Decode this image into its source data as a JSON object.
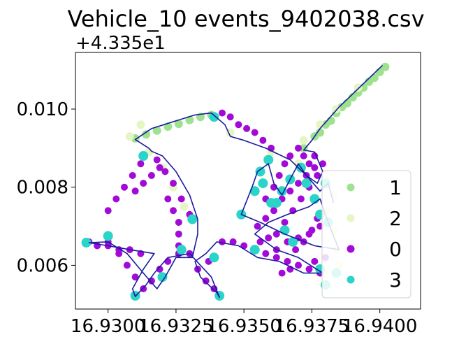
{
  "chart_data": {
    "type": "scatter",
    "title": "Vehicle_10 events_9402038.csv",
    "xlabel": "",
    "ylabel": "",
    "y_offset_text": "+4.335e1",
    "xlim": [
      16.9288,
      16.9415
    ],
    "ylim": [
      0.00488,
      0.01145
    ],
    "x_ticks": [
      16.93,
      16.9325,
      16.935,
      16.9375,
      16.94
    ],
    "x_tick_labels": [
      "16.9300",
      "16.9325",
      "16.9350",
      "16.9375",
      "16.9400"
    ],
    "y_ticks": [
      0.006,
      0.008,
      0.01
    ],
    "y_tick_labels": [
      "0.006",
      "0.008",
      "0.010"
    ],
    "grid": false,
    "legend_position": "lower-right",
    "colors": {
      "route_line": "#1a1aa0",
      "event_1": "#9de28e",
      "event_2": "#e6f5c4",
      "event_0": "#a20ad8",
      "event_3": "#2ad4c8"
    },
    "route": [
      [
        16.9401,
        0.01112
      ],
      [
        16.9385,
        0.01005
      ],
      [
        16.9378,
        0.0095
      ],
      [
        16.9375,
        0.0092
      ],
      [
        16.9372,
        0.00895
      ],
      [
        16.9376,
        0.0089
      ],
      [
        16.9379,
        0.0084
      ],
      [
        16.9377,
        0.0081
      ],
      [
        16.9373,
        0.0083
      ],
      [
        16.937,
        0.0086
      ],
      [
        16.9367,
        0.0082
      ],
      [
        16.9364,
        0.0078
      ],
      [
        16.9361,
        0.0081
      ],
      [
        16.9359,
        0.0086
      ],
      [
        16.9355,
        0.0084
      ],
      [
        16.9353,
        0.008
      ],
      [
        16.9349,
        0.0073
      ],
      [
        16.9356,
        0.0071
      ],
      [
        16.9365,
        0.0068
      ],
      [
        16.9376,
        0.0065
      ],
      [
        16.9385,
        0.0064
      ],
      [
        16.9381,
        0.0071
      ],
      [
        16.9378,
        0.0077
      ],
      [
        16.9374,
        0.0075
      ],
      [
        16.9366,
        0.0073
      ],
      [
        16.9359,
        0.0071
      ],
      [
        16.9354,
        0.0068
      ],
      [
        16.9362,
        0.0064
      ],
      [
        16.937,
        0.0062
      ],
      [
        16.9379,
        0.0058
      ],
      [
        16.9372,
        0.0058
      ],
      [
        16.9363,
        0.0061
      ],
      [
        16.9355,
        0.0062
      ],
      [
        16.9348,
        0.0065
      ],
      [
        16.934,
        0.0066
      ],
      [
        16.9336,
        0.0063
      ],
      [
        16.9332,
        0.0061
      ],
      [
        16.9334,
        0.0057
      ],
      [
        16.934,
        0.0053
      ],
      [
        16.9341,
        0.00518
      ],
      [
        16.9338,
        0.0057
      ],
      [
        16.933,
        0.0063
      ],
      [
        16.9322,
        0.0062
      ],
      [
        16.9317,
        0.0058
      ],
      [
        16.9314,
        0.0055
      ],
      [
        16.931,
        0.0052
      ],
      [
        16.9309,
        0.0054
      ],
      [
        16.9313,
        0.0059
      ],
      [
        16.9317,
        0.0063
      ],
      [
        16.9308,
        0.0064
      ],
      [
        16.93,
        0.0065
      ],
      [
        16.9293,
        0.00658
      ],
      [
        16.93,
        0.0066
      ],
      [
        16.9307,
        0.0063
      ],
      [
        16.9313,
        0.0058
      ],
      [
        16.9318,
        0.0054
      ],
      [
        16.9321,
        0.0057
      ],
      [
        16.9325,
        0.0062
      ],
      [
        16.9331,
        0.0062
      ],
      [
        16.9333,
        0.0068
      ],
      [
        16.9333,
        0.00718
      ],
      [
        16.933,
        0.0078
      ],
      [
        16.9325,
        0.0084
      ],
      [
        16.932,
        0.0088
      ],
      [
        16.9316,
        0.00892
      ],
      [
        16.9315,
        0.009
      ],
      [
        16.931,
        0.00922
      ],
      [
        16.9316,
        0.0095
      ],
      [
        16.9325,
        0.0097
      ],
      [
        16.9332,
        0.00985
      ],
      [
        16.9338,
        0.0099
      ],
      [
        16.9343,
        0.0096
      ],
      [
        16.9345,
        0.0093
      ],
      [
        16.935,
        0.0092
      ],
      [
        16.9358,
        0.009
      ],
      [
        16.9367,
        0.0087
      ],
      [
        16.9373,
        0.0083
      ],
      [
        16.9378,
        0.0079
      ],
      [
        16.9381,
        0.0081
      ],
      [
        16.9383,
        0.0076
      ]
    ],
    "series": [
      {
        "name": "1",
        "color": "#9de28e",
        "size": 6,
        "points": [
          [
            16.931,
            0.00925
          ],
          [
            16.9314,
            0.00935
          ],
          [
            16.9318,
            0.00945
          ],
          [
            16.9322,
            0.00955
          ],
          [
            16.9326,
            0.00962
          ],
          [
            16.933,
            0.00972
          ],
          [
            16.9334,
            0.0098
          ],
          [
            16.9338,
            0.00985
          ],
          [
            16.9376,
            0.0093
          ],
          [
            16.938,
            0.0096
          ],
          [
            16.9384,
            0.0099
          ],
          [
            16.9388,
            0.01015
          ],
          [
            16.9392,
            0.01042
          ],
          [
            16.9396,
            0.0107
          ],
          [
            16.94,
            0.01095
          ],
          [
            16.9402,
            0.01108
          ],
          [
            16.9372,
            0.009
          ],
          [
            16.9378,
            0.0094
          ],
          [
            16.9386,
            0.01005
          ],
          [
            16.9394,
            0.01055
          ],
          [
            16.9398,
            0.0108
          ],
          [
            16.9382,
            0.0097
          ],
          [
            16.939,
            0.0103
          ]
        ]
      },
      {
        "name": "2",
        "color": "#e6f5c4",
        "size": 6,
        "points": [
          [
            16.9315,
            0.0089
          ],
          [
            16.932,
            0.0085
          ],
          [
            16.9324,
            0.008
          ],
          [
            16.9328,
            0.0075
          ],
          [
            16.9372,
            0.0092
          ],
          [
            16.9378,
            0.0096
          ],
          [
            16.9384,
            0.01
          ],
          [
            16.9392,
            0.01055
          ],
          [
            16.9381,
            0.0074
          ],
          [
            16.9383,
            0.0069
          ],
          [
            16.9384,
            0.0064
          ],
          [
            16.9385,
            0.006
          ],
          [
            16.9379,
            0.0058
          ],
          [
            16.938,
            0.0082
          ],
          [
            16.9383,
            0.0078
          ],
          [
            16.9312,
            0.0096
          ],
          [
            16.9308,
            0.0093
          ],
          [
            16.9345,
            0.0094
          ],
          [
            16.936,
            0.0089
          ],
          [
            16.937,
            0.0086
          ]
        ]
      },
      {
        "name": "0",
        "color": "#a20ad8",
        "size": 5,
        "points": [
          [
            16.9293,
            0.0066
          ],
          [
            16.9296,
            0.0065
          ],
          [
            16.93,
            0.0065
          ],
          [
            16.9304,
            0.0064
          ],
          [
            16.9308,
            0.0064
          ],
          [
            16.9312,
            0.0063
          ],
          [
            16.93,
            0.0066
          ],
          [
            16.9304,
            0.0063
          ],
          [
            16.9307,
            0.006
          ],
          [
            16.931,
            0.0057
          ],
          [
            16.9313,
            0.0054
          ],
          [
            16.9316,
            0.0056
          ],
          [
            16.9319,
            0.0059
          ],
          [
            16.9322,
            0.0061
          ],
          [
            16.9326,
            0.0063
          ],
          [
            16.933,
            0.0063
          ],
          [
            16.9333,
            0.0059
          ],
          [
            16.9336,
            0.0056
          ],
          [
            16.9339,
            0.0054
          ],
          [
            16.9341,
            0.0052
          ],
          [
            16.9337,
            0.0061
          ],
          [
            16.9342,
            0.0066
          ],
          [
            16.9346,
            0.0066
          ],
          [
            16.935,
            0.0065
          ],
          [
            16.9354,
            0.0064
          ],
          [
            16.9358,
            0.0063
          ],
          [
            16.9362,
            0.0062
          ],
          [
            16.9366,
            0.0061
          ],
          [
            16.937,
            0.006
          ],
          [
            16.9374,
            0.0059
          ],
          [
            16.9378,
            0.0058
          ],
          [
            16.9362,
            0.0064
          ],
          [
            16.9366,
            0.0066
          ],
          [
            16.937,
            0.0067
          ],
          [
            16.9374,
            0.0068
          ],
          [
            16.9378,
            0.007
          ],
          [
            16.9355,
            0.007
          ],
          [
            16.9358,
            0.0072
          ],
          [
            16.9361,
            0.0074
          ],
          [
            16.9364,
            0.0077
          ],
          [
            16.9367,
            0.0079
          ],
          [
            16.937,
            0.0081
          ],
          [
            16.9373,
            0.0083
          ],
          [
            16.9376,
            0.0085
          ],
          [
            16.9358,
            0.0077
          ],
          [
            16.9361,
            0.008
          ],
          [
            16.9363,
            0.0083
          ],
          [
            16.9365,
            0.0086
          ],
          [
            16.9362,
            0.0068
          ],
          [
            16.9365,
            0.0071
          ],
          [
            16.9368,
            0.0074
          ],
          [
            16.9371,
            0.0077
          ],
          [
            16.9374,
            0.008
          ],
          [
            16.9377,
            0.0083
          ],
          [
            16.9379,
            0.0086
          ],
          [
            16.9376,
            0.0088
          ],
          [
            16.936,
            0.009
          ],
          [
            16.9357,
            0.0092
          ],
          [
            16.9354,
            0.0094
          ],
          [
            16.9351,
            0.0095
          ],
          [
            16.9348,
            0.0096
          ],
          [
            16.9345,
            0.0098
          ],
          [
            16.9342,
            0.0099
          ],
          [
            16.933,
            0.0073
          ],
          [
            16.9327,
            0.0077
          ],
          [
            16.9324,
            0.0081
          ],
          [
            16.9321,
            0.0084
          ],
          [
            16.9318,
            0.0087
          ],
          [
            16.9322,
            0.0077
          ],
          [
            16.9324,
            0.0074
          ],
          [
            16.9326,
            0.0071
          ],
          [
            16.9326,
            0.0068
          ],
          [
            16.9326,
            0.0065
          ],
          [
            16.9312,
            0.0086
          ],
          [
            16.9309,
            0.0083
          ],
          [
            16.9306,
            0.008
          ],
          [
            16.9303,
            0.0077
          ],
          [
            16.93,
            0.0074
          ],
          [
            16.931,
            0.0079
          ],
          [
            16.9313,
            0.0081
          ],
          [
            16.9316,
            0.0083
          ],
          [
            16.9319,
            0.0085
          ],
          [
            16.9369,
            0.0064
          ],
          [
            16.9372,
            0.0066
          ],
          [
            16.9375,
            0.0069
          ],
          [
            16.9377,
            0.0072
          ],
          [
            16.9364,
            0.0058
          ],
          [
            16.9367,
            0.0059
          ],
          [
            16.9376,
            0.0061
          ],
          [
            16.938,
            0.0062
          ],
          [
            16.9356,
            0.0066
          ],
          [
            16.9359,
            0.0067
          ],
          [
            16.9367,
            0.0088
          ],
          [
            16.937,
            0.009
          ],
          [
            16.9372,
            0.0088
          ],
          [
            16.9374,
            0.0086
          ]
        ]
      },
      {
        "name": "3",
        "color": "#2ad4c8",
        "size": 7,
        "points": [
          [
            16.9292,
            0.00658
          ],
          [
            16.93,
            0.00675
          ],
          [
            16.931,
            0.00522
          ],
          [
            16.932,
            0.0057
          ],
          [
            16.9313,
            0.0088
          ],
          [
            16.9331,
            0.00718
          ],
          [
            16.9341,
            0.00522
          ],
          [
            16.9339,
            0.0098
          ],
          [
            16.9327,
            0.0064
          ],
          [
            16.9339,
            0.0062
          ],
          [
            16.9349,
            0.0073
          ],
          [
            16.9354,
            0.0079
          ],
          [
            16.9357,
            0.0081
          ],
          [
            16.9359,
            0.0087
          ],
          [
            16.9356,
            0.0084
          ],
          [
            16.936,
            0.0076
          ],
          [
            16.9364,
            0.0079
          ],
          [
            16.9367,
            0.0082
          ],
          [
            16.9371,
            0.0085
          ],
          [
            16.9373,
            0.0081
          ],
          [
            16.9376,
            0.0077
          ],
          [
            16.9378,
            0.0073
          ],
          [
            16.9365,
            0.0069
          ],
          [
            16.9368,
            0.0066
          ],
          [
            16.9354,
            0.0064
          ],
          [
            16.938,
            0.0081
          ],
          [
            16.9381,
            0.0071
          ],
          [
            16.9378,
            0.0059
          ],
          [
            16.938,
            0.0055
          ],
          [
            16.9384,
            0.0058
          ],
          [
            16.9362,
            0.0076
          ]
        ]
      }
    ],
    "legend": [
      {
        "label": "1",
        "color": "#9de28e"
      },
      {
        "label": "2",
        "color": "#e6f5c4"
      },
      {
        "label": "0",
        "color": "#a20ad8"
      },
      {
        "label": "3",
        "color": "#2ad4c8"
      }
    ]
  }
}
